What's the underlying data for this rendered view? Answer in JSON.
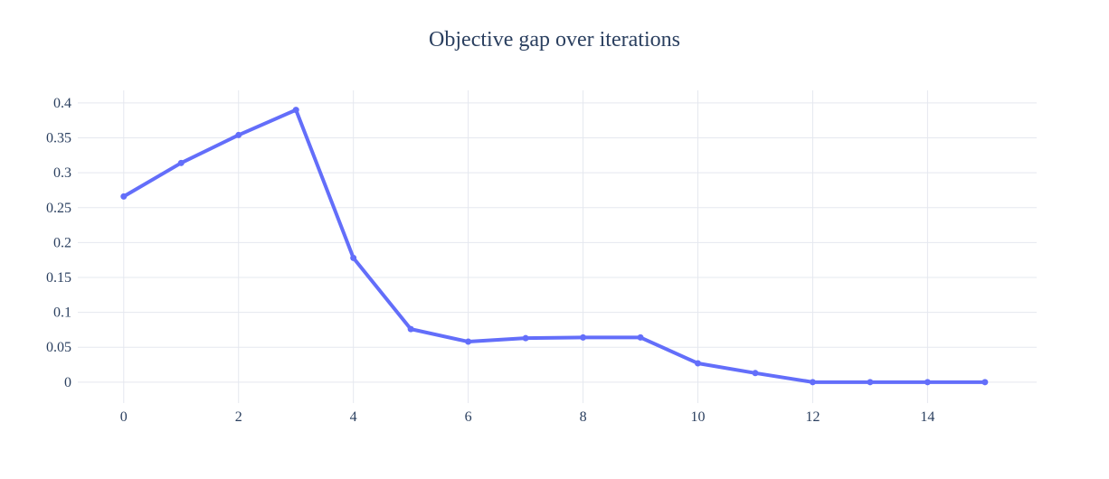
{
  "chart_data": {
    "type": "line",
    "title": "Objective gap over iterations",
    "xlabel": "",
    "ylabel": "",
    "x": [
      0,
      1,
      2,
      3,
      4,
      5,
      6,
      7,
      8,
      9,
      10,
      11,
      12,
      13,
      14,
      15
    ],
    "series": [
      {
        "values": [
          0.266,
          0.314,
          0.354,
          0.39,
          0.178,
          0.076,
          0.058,
          0.063,
          0.064,
          0.064,
          0.027,
          0.013,
          0.0,
          0.0,
          0.0,
          0.0
        ],
        "color": "#636efa",
        "markers": true
      }
    ],
    "xlim": [
      -0.8,
      15.9
    ],
    "ylim": [
      -0.03,
      0.418
    ],
    "x_ticks": [
      0,
      2,
      4,
      6,
      8,
      10,
      12,
      14
    ],
    "x_tick_labels": [
      "0",
      "2",
      "4",
      "6",
      "8",
      "10",
      "12",
      "14"
    ],
    "y_ticks": [
      0,
      0.05,
      0.1,
      0.15,
      0.2,
      0.25,
      0.3,
      0.35,
      0.4
    ],
    "y_tick_labels": [
      "0",
      "0.05",
      "0.1",
      "0.15",
      "0.2",
      "0.25",
      "0.3",
      "0.35",
      "0.4"
    ],
    "grid": true,
    "legend": "none",
    "colors": {
      "line": "#636efa",
      "grid": "#e5e8ef",
      "text": "#2a3f5f",
      "background": "#ffffff"
    }
  }
}
